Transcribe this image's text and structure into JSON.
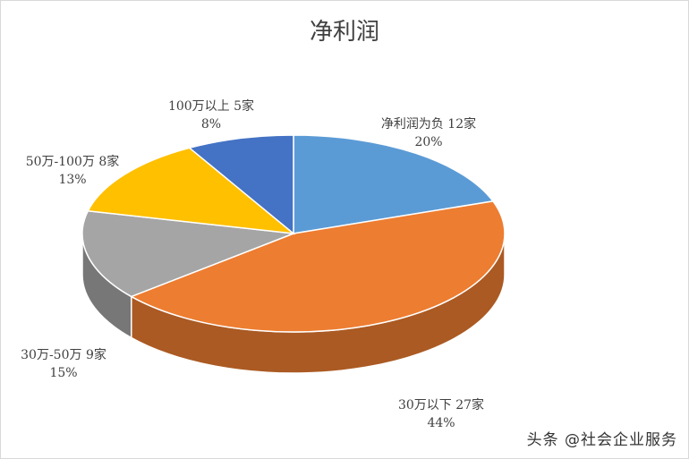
{
  "chart_data": {
    "type": "pie",
    "title": "净利润",
    "slices": [
      {
        "label": "净利润为负 12家",
        "value": 12,
        "percent": "20%",
        "color": "#5B9BD5"
      },
      {
        "label": "30万以下 27家",
        "value": 27,
        "percent": "44%",
        "color": "#ED7D31"
      },
      {
        "label": "30万-50万 9家",
        "value": 9,
        "percent": "15%",
        "color": "#A5A5A5"
      },
      {
        "label": "50万-100万 8家",
        "value": 8,
        "percent": "13%",
        "color": "#FFC000"
      },
      {
        "label": "100万以上 5家",
        "value": 5,
        "percent": "8%",
        "color": "#4472C4"
      }
    ],
    "style": "3d-pie",
    "legend": "none"
  },
  "watermark": "头条 @社会企业服务"
}
